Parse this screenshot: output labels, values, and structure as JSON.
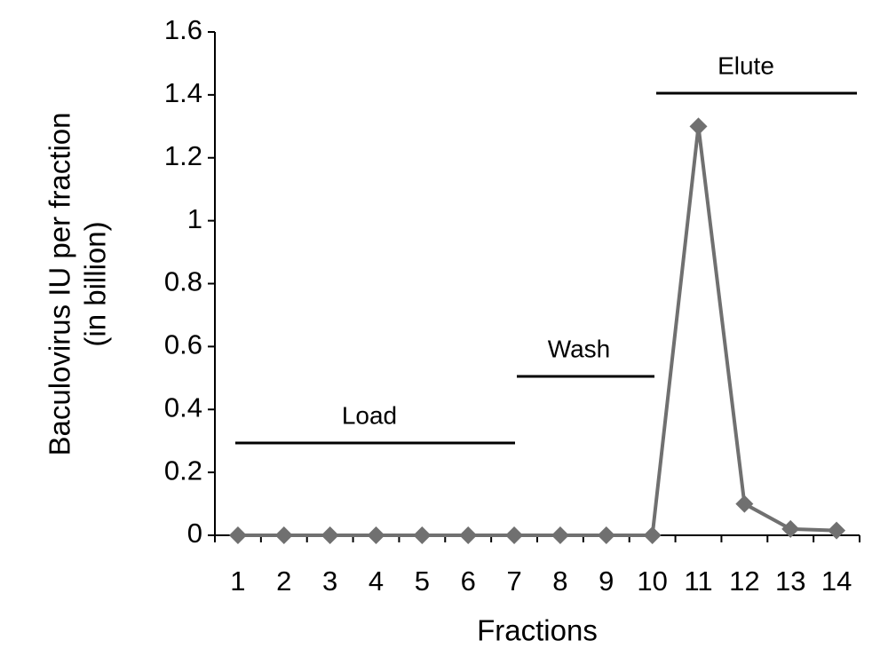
{
  "chart_data": {
    "type": "line",
    "xlabel": "Fractions",
    "ylabel": [
      "Baculovirus IU per fraction",
      "(in billion)"
    ],
    "categories": [
      "1",
      "2",
      "3",
      "4",
      "5",
      "6",
      "7",
      "8",
      "9",
      "10",
      "11",
      "12",
      "13",
      "14"
    ],
    "values": [
      0,
      0,
      0,
      0,
      0,
      0,
      0,
      0,
      0,
      0,
      1.3,
      0.1,
      0.02,
      0.015
    ],
    "color": "#707070",
    "ylim": [
      0,
      1.6
    ],
    "yticks": [
      0,
      0.2,
      0.4,
      0.6,
      0.8,
      1,
      1.2,
      1.4,
      1.6
    ],
    "annotations": [
      "Load",
      "Wash",
      "Elute"
    ]
  }
}
